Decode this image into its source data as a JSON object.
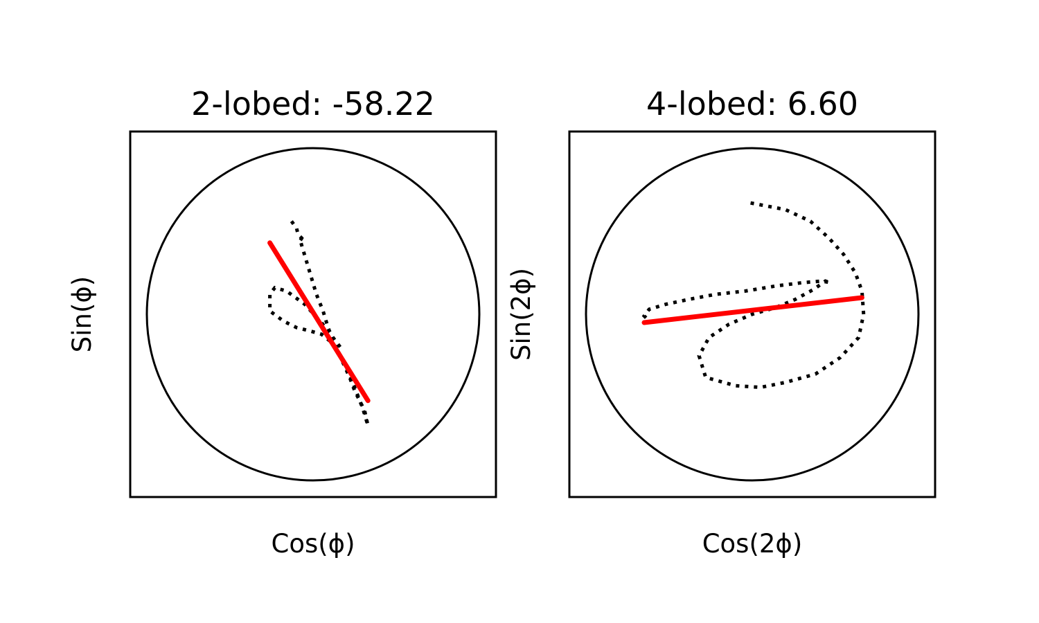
{
  "chart_data": [
    {
      "type": "line",
      "title": "2-lobed: -58.22",
      "xlabel": "Cos(ϕ)",
      "ylabel": "Sin(ϕ)",
      "xlim": [
        -1.1,
        1.1
      ],
      "ylim": [
        -1.1,
        1.1
      ],
      "grid": false,
      "ticks": false,
      "series": [
        {
          "style": "dotted",
          "color": "#000000",
          "x": [
            -0.13,
            -0.1,
            -0.09,
            -0.05,
            -0.08,
            -0.07,
            -0.04,
            -0.01,
            0.02,
            0.06,
            0.09,
            0.13,
            0.17,
            0.22,
            0.25,
            0.31,
            0.33,
            0.3,
            0.25,
            0.2,
            0.15,
            0.1,
            0.05,
            -0.02,
            -0.1,
            -0.18,
            -0.26,
            -0.26,
            -0.23,
            -0.16,
            -0.05,
            0.05,
            0.12,
            0.18
          ],
          "y": [
            0.56,
            0.52,
            0.48,
            0.44,
            0.46,
            0.42,
            0.32,
            0.22,
            0.12,
            0.02,
            -0.08,
            -0.18,
            -0.27,
            -0.38,
            -0.46,
            -0.58,
            -0.67,
            -0.57,
            -0.44,
            -0.32,
            -0.22,
            -0.16,
            -0.12,
            -0.1,
            -0.08,
            -0.04,
            0.02,
            0.12,
            0.16,
            0.14,
            0.06,
            -0.05,
            -0.14,
            -0.22
          ]
        },
        {
          "style": "solid",
          "color": "#ff0000",
          "x": [
            -0.26,
            0.33
          ],
          "y": [
            0.43,
            -0.52
          ]
        }
      ]
    },
    {
      "type": "line",
      "title": "4-lobed: 6.60",
      "xlabel": "Cos(2ϕ)",
      "ylabel": "Sin(2ϕ)",
      "xlim": [
        -1.1,
        1.1
      ],
      "ylim": [
        -1.1,
        1.1
      ],
      "grid": false,
      "ticks": false,
      "series": [
        {
          "style": "dotted",
          "color": "#000000",
          "x": [
            -0.01,
            0.2,
            0.35,
            0.46,
            0.55,
            0.62,
            0.66,
            0.67,
            0.64,
            0.53,
            0.38,
            0.2,
            0.05,
            -0.1,
            -0.28,
            -0.32,
            -0.26,
            -0.14,
            0.0,
            0.14,
            0.26,
            0.37,
            0.44,
            0.47,
            0.42,
            0.3,
            0.14,
            -0.04,
            -0.22,
            -0.38,
            -0.52,
            -0.62,
            -0.65,
            -0.63
          ],
          "y": [
            0.67,
            0.63,
            0.56,
            0.46,
            0.36,
            0.25,
            0.14,
            0.0,
            -0.14,
            -0.26,
            -0.36,
            -0.41,
            -0.44,
            -0.43,
            -0.38,
            -0.25,
            -0.14,
            -0.06,
            0.0,
            0.04,
            0.09,
            0.15,
            0.2,
            0.19,
            0.2,
            0.19,
            0.17,
            0.14,
            0.12,
            0.09,
            0.06,
            0.03,
            -0.01,
            -0.03
          ]
        },
        {
          "style": "solid",
          "color": "#ff0000",
          "x": [
            -0.65,
            0.66
          ],
          "y": [
            -0.05,
            0.1
          ]
        }
      ]
    }
  ]
}
